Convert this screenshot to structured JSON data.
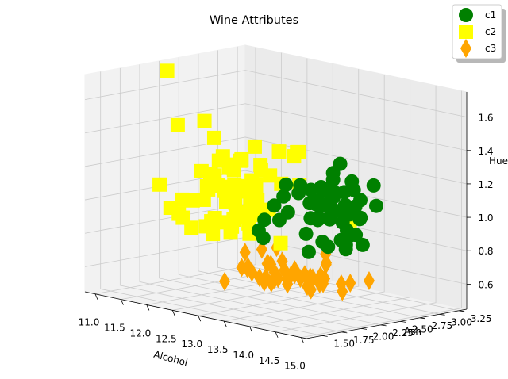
{
  "chart_data": {
    "type": "scatter",
    "projection": "3d",
    "title": "Wine Attributes",
    "xlabel": "Alcohol",
    "ylabel": "Ash",
    "zlabel": "Hue",
    "xlim": [
      10.8,
      15.1
    ],
    "ylim": [
      1.3,
      3.35
    ],
    "zlim": [
      0.45,
      1.75
    ],
    "xticks": [
      "11.0",
      "11.5",
      "12.0",
      "12.5",
      "13.0",
      "13.5",
      "14.0",
      "14.5",
      "15.0"
    ],
    "yticks": [
      "1.50",
      "1.75",
      "2.00",
      "2.25",
      "2.50",
      "2.75",
      "3.00",
      "3.25"
    ],
    "zticks": [
      "0.6",
      "0.8",
      "1.0",
      "1.2",
      "1.4",
      "1.6"
    ],
    "grid": true,
    "legend_position": "upper right",
    "series": [
      {
        "name": "c1",
        "marker": "circle",
        "color": "#008000",
        "points": [
          [
            14.23,
            2.43,
            1.04
          ],
          [
            13.2,
            2.14,
            1.05
          ],
          [
            13.16,
            2.67,
            1.03
          ],
          [
            14.37,
            2.5,
            0.86
          ],
          [
            13.24,
            2.87,
            1.04
          ],
          [
            14.2,
            2.45,
            1.05
          ],
          [
            14.39,
            2.45,
            1.02
          ],
          [
            14.06,
            2.61,
            1.06
          ],
          [
            14.83,
            2.17,
            1.08
          ],
          [
            13.86,
            2.27,
            1.01
          ],
          [
            14.1,
            2.3,
            1.25
          ],
          [
            14.12,
            2.32,
            1.17
          ],
          [
            13.75,
            2.41,
            1.15
          ],
          [
            14.75,
            2.39,
            1.25
          ],
          [
            14.38,
            2.38,
            1.2
          ],
          [
            13.63,
            2.7,
            1.28
          ],
          [
            14.3,
            2.72,
            1.07
          ],
          [
            13.83,
            2.62,
            1.13
          ],
          [
            14.19,
            2.48,
            1.23
          ],
          [
            13.64,
            2.56,
            0.96
          ],
          [
            14.06,
            2.28,
            1.09
          ],
          [
            12.93,
            2.65,
            1.11
          ],
          [
            13.71,
            2.36,
            1.09
          ],
          [
            12.85,
            2.52,
            1.12
          ],
          [
            13.5,
            2.61,
            1.13
          ],
          [
            13.05,
            3.22,
            0.92
          ],
          [
            13.39,
            2.62,
            1.13
          ],
          [
            13.3,
            2.14,
            0.97
          ],
          [
            13.87,
            2.8,
            1.07
          ],
          [
            14.02,
            2.21,
            1.1
          ],
          [
            13.73,
            2.7,
            1.04
          ],
          [
            13.58,
            2.36,
            1.15
          ],
          [
            13.68,
            2.36,
            1.07
          ],
          [
            13.76,
            2.7,
            0.89
          ],
          [
            13.51,
            2.65,
            1.05
          ],
          [
            13.48,
            2.41,
            1.06
          ],
          [
            13.28,
            2.84,
            1.19
          ],
          [
            13.05,
            2.55,
            1.08
          ],
          [
            13.07,
            2.1,
            0.96
          ],
          [
            14.22,
            2.51,
            0.91
          ],
          [
            13.56,
            2.31,
            0.89
          ],
          [
            13.41,
            2.12,
            1.12
          ],
          [
            13.88,
            2.59,
            1.05
          ],
          [
            13.24,
            2.29,
            1.0
          ],
          [
            13.05,
            2.1,
            0.85
          ],
          [
            14.21,
            2.44,
            0.91
          ],
          [
            14.38,
            2.28,
            0.88
          ],
          [
            13.9,
            2.12,
            0.82
          ],
          [
            14.1,
            2.4,
            0.88
          ],
          [
            13.94,
            2.27,
            0.87
          ],
          [
            13.05,
            2.04,
            0.9
          ],
          [
            13.83,
            2.6,
            0.95
          ],
          [
            13.82,
            2.42,
            0.82
          ],
          [
            13.77,
            2.68,
            0.78
          ],
          [
            13.74,
            2.25,
            1.0
          ],
          [
            13.56,
            2.46,
            0.96
          ],
          [
            14.22,
            2.3,
            1.07
          ],
          [
            13.29,
            2.68,
            1.12
          ],
          [
            13.72,
            2.5,
            0.98
          ]
        ]
      },
      {
        "name": "c2",
        "marker": "square",
        "color": "#ffff00",
        "points": [
          [
            12.37,
            1.36,
            1.05
          ],
          [
            12.33,
            2.28,
            1.25
          ],
          [
            12.64,
            2.02,
            0.98
          ],
          [
            13.67,
            1.92,
            1.23
          ],
          [
            12.37,
            2.16,
            1.22
          ],
          [
            12.17,
            2.53,
            1.1
          ],
          [
            12.37,
            2.56,
            0.93
          ],
          [
            13.11,
            1.7,
            1.1
          ],
          [
            12.37,
            1.92,
            1.42
          ],
          [
            13.34,
            2.36,
            1.36
          ],
          [
            12.21,
            1.75,
            1.05
          ],
          [
            12.29,
            2.21,
            1.23
          ],
          [
            13.86,
            2.67,
            0.96
          ],
          [
            13.49,
            2.24,
            1.38
          ],
          [
            12.99,
            2.6,
            1.12
          ],
          [
            11.96,
            2.3,
            1.25
          ],
          [
            11.66,
            1.92,
            1.45
          ],
          [
            13.03,
            1.71,
            0.95
          ],
          [
            11.84,
            2.23,
            0.86
          ],
          [
            12.33,
            1.95,
            1.19
          ],
          [
            12.7,
            2.4,
            0.97
          ],
          [
            12.0,
            2.0,
            1.19
          ],
          [
            12.72,
            2.2,
            0.86
          ],
          [
            12.08,
            2.51,
            1.03
          ],
          [
            13.05,
            2.32,
            0.8
          ],
          [
            11.84,
            2.58,
            1.04
          ],
          [
            12.67,
            2.24,
            1.36
          ],
          [
            12.16,
            2.31,
            1.18
          ],
          [
            11.65,
            2.62,
            1.02
          ],
          [
            11.64,
            2.46,
            1.19
          ],
          [
            12.08,
            2.3,
            1.19
          ],
          [
            12.08,
            2.32,
            0.8
          ],
          [
            12.0,
            2.42,
            1.07
          ],
          [
            12.69,
            2.26,
            1.04
          ],
          [
            12.29,
            2.22,
            0.9
          ],
          [
            11.62,
            2.28,
            0.97
          ],
          [
            12.47,
            2.2,
            0.93
          ],
          [
            11.81,
            2.74,
            0.74
          ],
          [
            12.29,
            1.98,
            0.93
          ],
          [
            12.37,
            2.1,
            1.04
          ],
          [
            12.29,
            2.21,
            1.02
          ],
          [
            12.08,
            1.7,
            1.05
          ],
          [
            12.6,
            1.9,
            1.12
          ],
          [
            12.34,
            2.46,
            0.91
          ],
          [
            11.82,
            1.88,
            0.91
          ],
          [
            12.51,
            1.98,
            1.04
          ],
          [
            12.42,
            2.27,
            0.95
          ],
          [
            12.25,
            2.12,
            0.89
          ],
          [
            12.72,
            2.28,
            1.25
          ],
          [
            12.22,
            1.94,
            1.1
          ],
          [
            11.61,
            2.7,
            1.01
          ],
          [
            11.46,
            1.82,
            1.09
          ],
          [
            12.52,
            2.17,
            1.28
          ],
          [
            11.76,
            2.92,
            1.1
          ],
          [
            11.41,
            2.5,
            1.09
          ],
          [
            12.08,
            2.5,
            1.04
          ],
          [
            11.03,
            2.2,
            1.71
          ],
          [
            11.82,
            1.99,
            0.84
          ],
          [
            12.42,
            2.42,
            1.1
          ],
          [
            12.77,
            2.19,
            1.07
          ],
          [
            12.0,
            1.71,
            0.96
          ],
          [
            11.45,
            2.4,
            1.42
          ],
          [
            11.56,
            2.36,
            1.04
          ],
          [
            12.42,
            2.6,
            1.14
          ],
          [
            13.05,
            2.3,
            1.35
          ],
          [
            11.87,
            2.3,
            1.07
          ],
          [
            12.07,
            2.1,
            0.81
          ],
          [
            12.43,
            2.9,
            1.23
          ],
          [
            11.79,
            2.74,
            0.8
          ],
          [
            12.37,
            2.38,
            1.0
          ],
          [
            12.04,
            2.03,
            0.86
          ]
        ]
      },
      {
        "name": "c3",
        "marker": "diamond",
        "color": "#ffa500",
        "points": [
          [
            12.86,
            2.38,
            0.58
          ],
          [
            12.88,
            2.4,
            0.57
          ],
          [
            12.81,
            2.4,
            0.56
          ],
          [
            12.7,
            2.36,
            0.57
          ],
          [
            12.51,
            2.25,
            0.62
          ],
          [
            12.6,
            2.2,
            0.64
          ],
          [
            12.25,
            2.48,
            0.56
          ],
          [
            12.53,
            2.5,
            0.63
          ],
          [
            13.49,
            2.54,
            0.58
          ],
          [
            12.84,
            2.64,
            0.6
          ],
          [
            12.93,
            2.19,
            0.57
          ],
          [
            13.36,
            2.7,
            0.67
          ],
          [
            13.52,
            2.35,
            0.57
          ],
          [
            13.62,
            2.72,
            0.56
          ],
          [
            12.25,
            2.35,
            0.6
          ],
          [
            13.16,
            2.2,
            0.62
          ],
          [
            13.88,
            2.15,
            0.6
          ],
          [
            12.87,
            2.32,
            0.55
          ],
          [
            13.32,
            2.23,
            0.58
          ],
          [
            13.08,
            2.48,
            0.6
          ],
          [
            13.5,
            2.6,
            0.74
          ],
          [
            12.79,
            2.32,
            0.66
          ],
          [
            13.11,
            2.2,
            0.64
          ],
          [
            13.23,
            2.61,
            0.57
          ],
          [
            12.58,
            2.36,
            0.56
          ],
          [
            13.17,
            2.62,
            0.58
          ],
          [
            13.84,
            2.3,
            0.61
          ],
          [
            12.45,
            2.0,
            0.56
          ],
          [
            14.34,
            2.26,
            0.6
          ],
          [
            13.48,
            2.29,
            0.62
          ],
          [
            12.36,
            2.32,
            0.7
          ],
          [
            13.69,
            2.48,
            0.7
          ],
          [
            12.85,
            2.5,
            0.61
          ],
          [
            12.96,
            2.4,
            0.68
          ],
          [
            13.78,
            2.35,
            0.65
          ],
          [
            13.73,
            2.26,
            0.57
          ],
          [
            13.45,
            2.6,
            0.56
          ],
          [
            12.82,
            2.42,
            0.75
          ],
          [
            13.58,
            2.28,
            0.65
          ],
          [
            13.4,
            2.5,
            0.6
          ],
          [
            12.2,
            2.64,
            0.68
          ],
          [
            12.77,
            2.38,
            0.65
          ],
          [
            14.16,
            2.48,
            0.62
          ],
          [
            13.71,
            2.45,
            0.62
          ],
          [
            13.4,
            2.48,
            0.58
          ],
          [
            13.27,
            2.26,
            0.6
          ],
          [
            13.17,
            2.37,
            0.61
          ],
          [
            14.13,
            2.74,
            0.61
          ]
        ]
      }
    ]
  }
}
